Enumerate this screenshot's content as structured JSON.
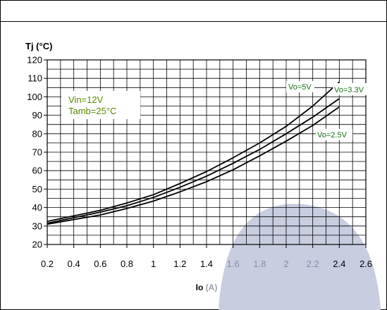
{
  "chart_data": {
    "type": "line",
    "ylabel": "Tj (°C)",
    "xlabel_main": "Io",
    "xlabel_unit": " (A)",
    "xlim": [
      0.2,
      2.6
    ],
    "ylim": [
      20,
      120
    ],
    "x_ticks": [
      0.2,
      0.4,
      0.6,
      0.8,
      1,
      1.2,
      1.4,
      1.6,
      1.8,
      2,
      2.2,
      2.4,
      2.6
    ],
    "x_tick_labels": [
      "0.2",
      "0.4",
      "0.6",
      "0.8",
      "1",
      "1.2",
      "1.4",
      "1.6",
      "1.8",
      "2",
      "2.2",
      "2.4",
      "2.6"
    ],
    "y_ticks": [
      20,
      30,
      40,
      50,
      60,
      70,
      80,
      90,
      100,
      110,
      120
    ],
    "y_tick_labels": [
      "20",
      "30",
      "40",
      "50",
      "60",
      "70",
      "80",
      "90",
      "100",
      "110",
      "120"
    ],
    "grid": true,
    "conditions": [
      "Vin=12V",
      "Tamb=25°C"
    ],
    "series": [
      {
        "name": "Vo=5V",
        "x": [
          0.2,
          0.4,
          0.6,
          0.8,
          1.0,
          1.2,
          1.4,
          1.6,
          1.8,
          2.0,
          2.2,
          2.4
        ],
        "y": [
          32.5,
          35.5,
          38.5,
          42.5,
          47,
          53,
          59.5,
          67,
          75,
          84,
          95,
          108
        ]
      },
      {
        "name": "Vo=3.3V",
        "x": [
          0.2,
          0.4,
          0.6,
          0.8,
          1.0,
          1.2,
          1.4,
          1.6,
          1.8,
          2.0,
          2.2,
          2.4
        ],
        "y": [
          31.5,
          34.5,
          37.5,
          41,
          45.5,
          51,
          57,
          64,
          71.5,
          80,
          89,
          99
        ]
      },
      {
        "name": "Vo=2.5V",
        "x": [
          0.2,
          0.4,
          0.6,
          0.8,
          1.0,
          1.2,
          1.4,
          1.6,
          1.8,
          2.0,
          2.2,
          2.4
        ],
        "y": [
          31,
          33.5,
          36,
          39.5,
          43.5,
          48.5,
          54,
          60.5,
          68,
          76,
          84.5,
          94.5
        ]
      }
    ]
  },
  "colors": {
    "line": "#000000",
    "label_text": "#1a6e1a",
    "condition_text": "#5a8a00",
    "watermark": "#c8cde0"
  }
}
